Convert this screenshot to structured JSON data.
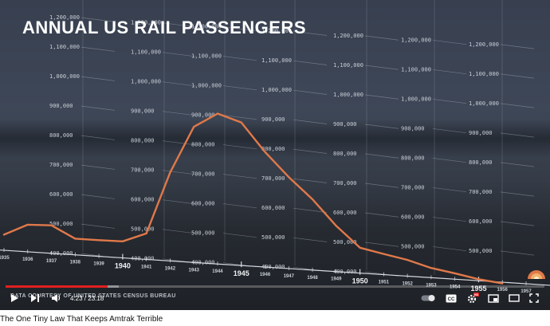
{
  "video": {
    "overlay_title": "ANNUAL US RAIL PASSENGERS",
    "credit": "DATA COURTESY OF UNITED STATES CENSUS BUREAU",
    "time_current": "4:23",
    "time_separator": " / ",
    "time_duration": "23:18",
    "progress_fraction": 0.19,
    "buffered_fraction": 0.21,
    "accent_color": "#e02020",
    "line_color": "#e0794a"
  },
  "controls": {
    "icons": [
      "play-icon",
      "next-icon",
      "volume-icon",
      "autoplay-toggle-icon",
      "captions-icon",
      "settings-icon",
      "miniplayer-icon",
      "theater-mode-icon",
      "fullscreen-icon"
    ],
    "captions_label": "CC",
    "settings_badge": "HD"
  },
  "page": {
    "title": "The One Tiny Law That Keeps Amtrak Terrible"
  },
  "chart_data": {
    "type": "line",
    "title": "ANNUAL US RAIL PASSENGERS",
    "x_ticks": [
      "1935",
      "1936",
      "1937",
      "1938",
      "1939",
      "1940",
      "1941",
      "1942",
      "1943",
      "1944",
      "1945",
      "1946",
      "1947",
      "1948",
      "1949",
      "1950",
      "1951",
      "1952",
      "1953",
      "1954",
      "1955",
      "1956",
      "1957"
    ],
    "x_major": [
      "1940",
      "1945",
      "1950",
      "1955"
    ],
    "y_ticks": [
      "400,000",
      "500,000",
      "600,000",
      "700,000",
      "800,000",
      "900,000",
      "1,000,000",
      "1,100,000",
      "1,200,000"
    ],
    "series": [
      {
        "x": [
          1935,
          1936,
          1937,
          1938,
          1939,
          1940,
          1941,
          1942,
          1943,
          1944,
          1945,
          1946,
          1947,
          1948,
          1949,
          1950,
          1951,
          1952,
          1953,
          1954,
          1955,
          1956
        ],
        "values": [
          453000,
          492000,
          495000,
          455000,
          455000,
          456000,
          488000,
          700000,
          860000,
          910000,
          885000,
          790000,
          710000,
          640000,
          555000,
          486000,
          470000,
          455000,
          433000,
          420000,
          405000,
          396000
        ]
      }
    ]
  }
}
